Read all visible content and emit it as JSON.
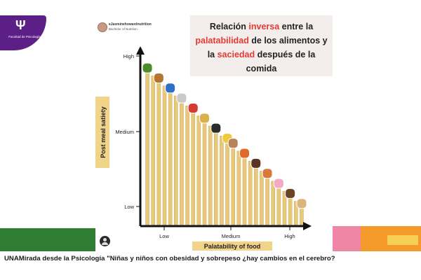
{
  "logo": {
    "glyph": "Ψ",
    "text": "Facultad de Psicología"
  },
  "author": {
    "handle": "eJasminehowardnutrition",
    "subtitle": "Bachelor of Nutrition"
  },
  "title": {
    "parts": [
      {
        "text": "Relación ",
        "highlight": false
      },
      {
        "text": "inversa",
        "highlight": true
      },
      {
        "text": " entre la ",
        "highlight": false
      },
      {
        "text": "palatabilidad",
        "highlight": true
      },
      {
        "text": " de los alimentos y la ",
        "highlight": false
      },
      {
        "text": "saciedad",
        "highlight": true
      },
      {
        "text": " después de la comida",
        "highlight": false
      }
    ]
  },
  "caption": "UNAMirada desde la Psicología \"Niñas y niños con obesidad y sobrepeso ¿hay cambios en el cerebro?",
  "colors": {
    "bar": "#e8c97a",
    "bar_edge": "#c9a75a",
    "axis": "#111111",
    "highlight": "#e53935",
    "brand_purple": "#5b1f86"
  },
  "chart_data": {
    "type": "bar",
    "xlabel": "Palatability of food",
    "ylabel": "Post meal satiety",
    "x_ticks": [
      "Low",
      "Medium",
      "High"
    ],
    "y_ticks": [
      "High",
      "Medium",
      "Low"
    ],
    "ylim": [
      0,
      100
    ],
    "values": [
      92,
      89,
      86,
      83,
      80,
      77,
      74,
      71,
      68,
      65,
      62,
      59,
      56,
      53,
      50,
      47,
      44,
      41,
      38,
      35,
      32,
      29,
      26,
      23,
      20,
      17,
      14,
      11
    ],
    "food_icons": [
      "broccoli-icon",
      "nuts-icon",
      "cereal-box-icon",
      "can-icon",
      "apples-icon",
      "potato-icon",
      "yogurt-icon",
      "banana-icon",
      "cracker-icon",
      "pasta-dish-icon",
      "brownie-icon",
      "pizza-icon",
      "donut-icon",
      "chocolate-icon",
      "cookies-icon"
    ]
  }
}
